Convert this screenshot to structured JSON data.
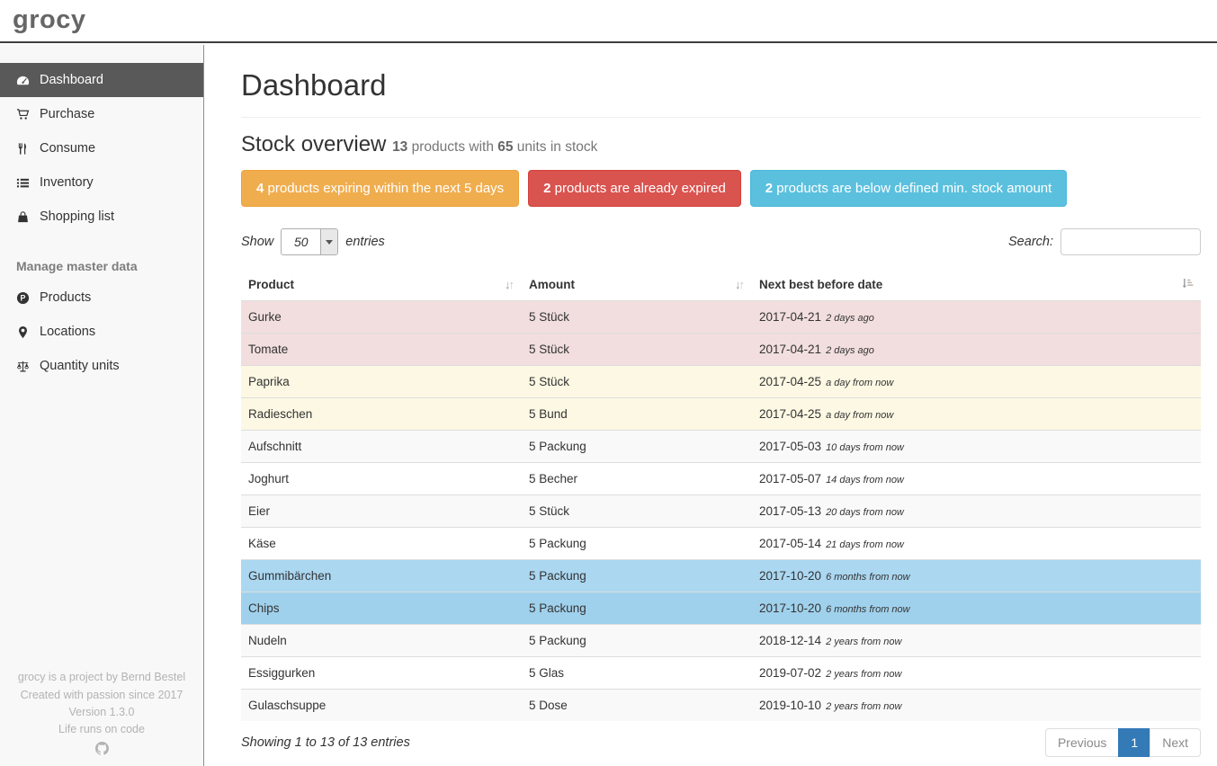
{
  "navbar": {
    "logo": "grocy"
  },
  "sidebar": {
    "items": [
      {
        "label": "Dashboard",
        "icon": "tachometer-icon",
        "active": true
      },
      {
        "label": "Purchase",
        "icon": "shopping-cart-icon",
        "active": false
      },
      {
        "label": "Consume",
        "icon": "cutlery-icon",
        "active": false
      },
      {
        "label": "Inventory",
        "icon": "list-icon",
        "active": false
      },
      {
        "label": "Shopping list",
        "icon": "shopping-bag-icon",
        "active": false
      }
    ],
    "master_data_header": "Manage master data",
    "master_items": [
      {
        "label": "Products",
        "icon": "product-icon",
        "active": false
      },
      {
        "label": "Locations",
        "icon": "map-marker-icon",
        "active": false
      },
      {
        "label": "Quantity units",
        "icon": "balance-scale-icon",
        "active": false
      }
    ],
    "footer_lines": [
      "grocy is a project by Bernd Bestel",
      "Created with passion since 2017",
      "Version 1.3.0",
      "Life runs on code"
    ]
  },
  "page": {
    "title": "Dashboard"
  },
  "stock_overview": {
    "heading": "Stock overview",
    "products_count": "13",
    "products_label": " products with ",
    "units_count": "65",
    "units_label": " units in stock",
    "alerts": [
      {
        "count": "4",
        "text": " products expiring within the next 5 days",
        "bg": "#f0ad4e",
        "border": "#eea236"
      },
      {
        "count": "2",
        "text": " products are already expired",
        "bg": "#d9534f",
        "border": "#d43f3a"
      },
      {
        "count": "2",
        "text": " products are below defined min. stock amount",
        "bg": "#5bc0de",
        "border": "#46b8da"
      }
    ]
  },
  "table_controls": {
    "show_label": "Show",
    "page_length": "50",
    "entries_label": "entries",
    "search_label": "Search:",
    "search_value": ""
  },
  "table": {
    "columns": [
      "Product",
      "Amount",
      "Next best before date"
    ],
    "rows": [
      {
        "product": "Gurke",
        "amount": "5 Stück",
        "date": "2017-04-21",
        "relative": "2 days ago",
        "state": "danger"
      },
      {
        "product": "Tomate",
        "amount": "5 Stück",
        "date": "2017-04-21",
        "relative": "2 days ago",
        "state": "danger"
      },
      {
        "product": "Paprika",
        "amount": "5 Stück",
        "date": "2017-04-25",
        "relative": "a day from now",
        "state": "warning"
      },
      {
        "product": "Radieschen",
        "amount": "5 Bund",
        "date": "2017-04-25",
        "relative": "a day from now",
        "state": "warning"
      },
      {
        "product": "Aufschnitt",
        "amount": "5 Packung",
        "date": "2017-05-03",
        "relative": "10 days from now",
        "state": "plain"
      },
      {
        "product": "Joghurt",
        "amount": "5 Becher",
        "date": "2017-05-07",
        "relative": "14 days from now",
        "state": "plain"
      },
      {
        "product": "Eier",
        "amount": "5 Stück",
        "date": "2017-05-13",
        "relative": "20 days from now",
        "state": "plain"
      },
      {
        "product": "Käse",
        "amount": "5 Packung",
        "date": "2017-05-14",
        "relative": "21 days from now",
        "state": "plain"
      },
      {
        "product": "Gummibärchen",
        "amount": "5 Packung",
        "date": "2017-10-20",
        "relative": "6 months from now",
        "state": "info"
      },
      {
        "product": "Chips",
        "amount": "5 Packung",
        "date": "2017-10-20",
        "relative": "6 months from now",
        "state": "info"
      },
      {
        "product": "Nudeln",
        "amount": "5 Packung",
        "date": "2018-12-14",
        "relative": "2 years from now",
        "state": "plain"
      },
      {
        "product": "Essiggurken",
        "amount": "5 Glas",
        "date": "2019-07-02",
        "relative": "2 years from now",
        "state": "plain"
      },
      {
        "product": "Gulaschsuppe",
        "amount": "5 Dose",
        "date": "2019-10-10",
        "relative": "2 years from now",
        "state": "plain"
      }
    ]
  },
  "table_footer": {
    "info": "Showing 1 to 13 of 13 entries",
    "pagination": {
      "previous": "Previous",
      "page": "1",
      "next": "Next"
    }
  },
  "colors": {
    "danger_row": "#f2dede",
    "warning_row": "#fcf8e3",
    "info_row": "#abd7f1",
    "sidebar_active": "#595959",
    "active_page": "#337ab7",
    "alert_warning": "#f0ad4e",
    "alert_danger": "#d9534f",
    "alert_info": "#5bc0de"
  }
}
